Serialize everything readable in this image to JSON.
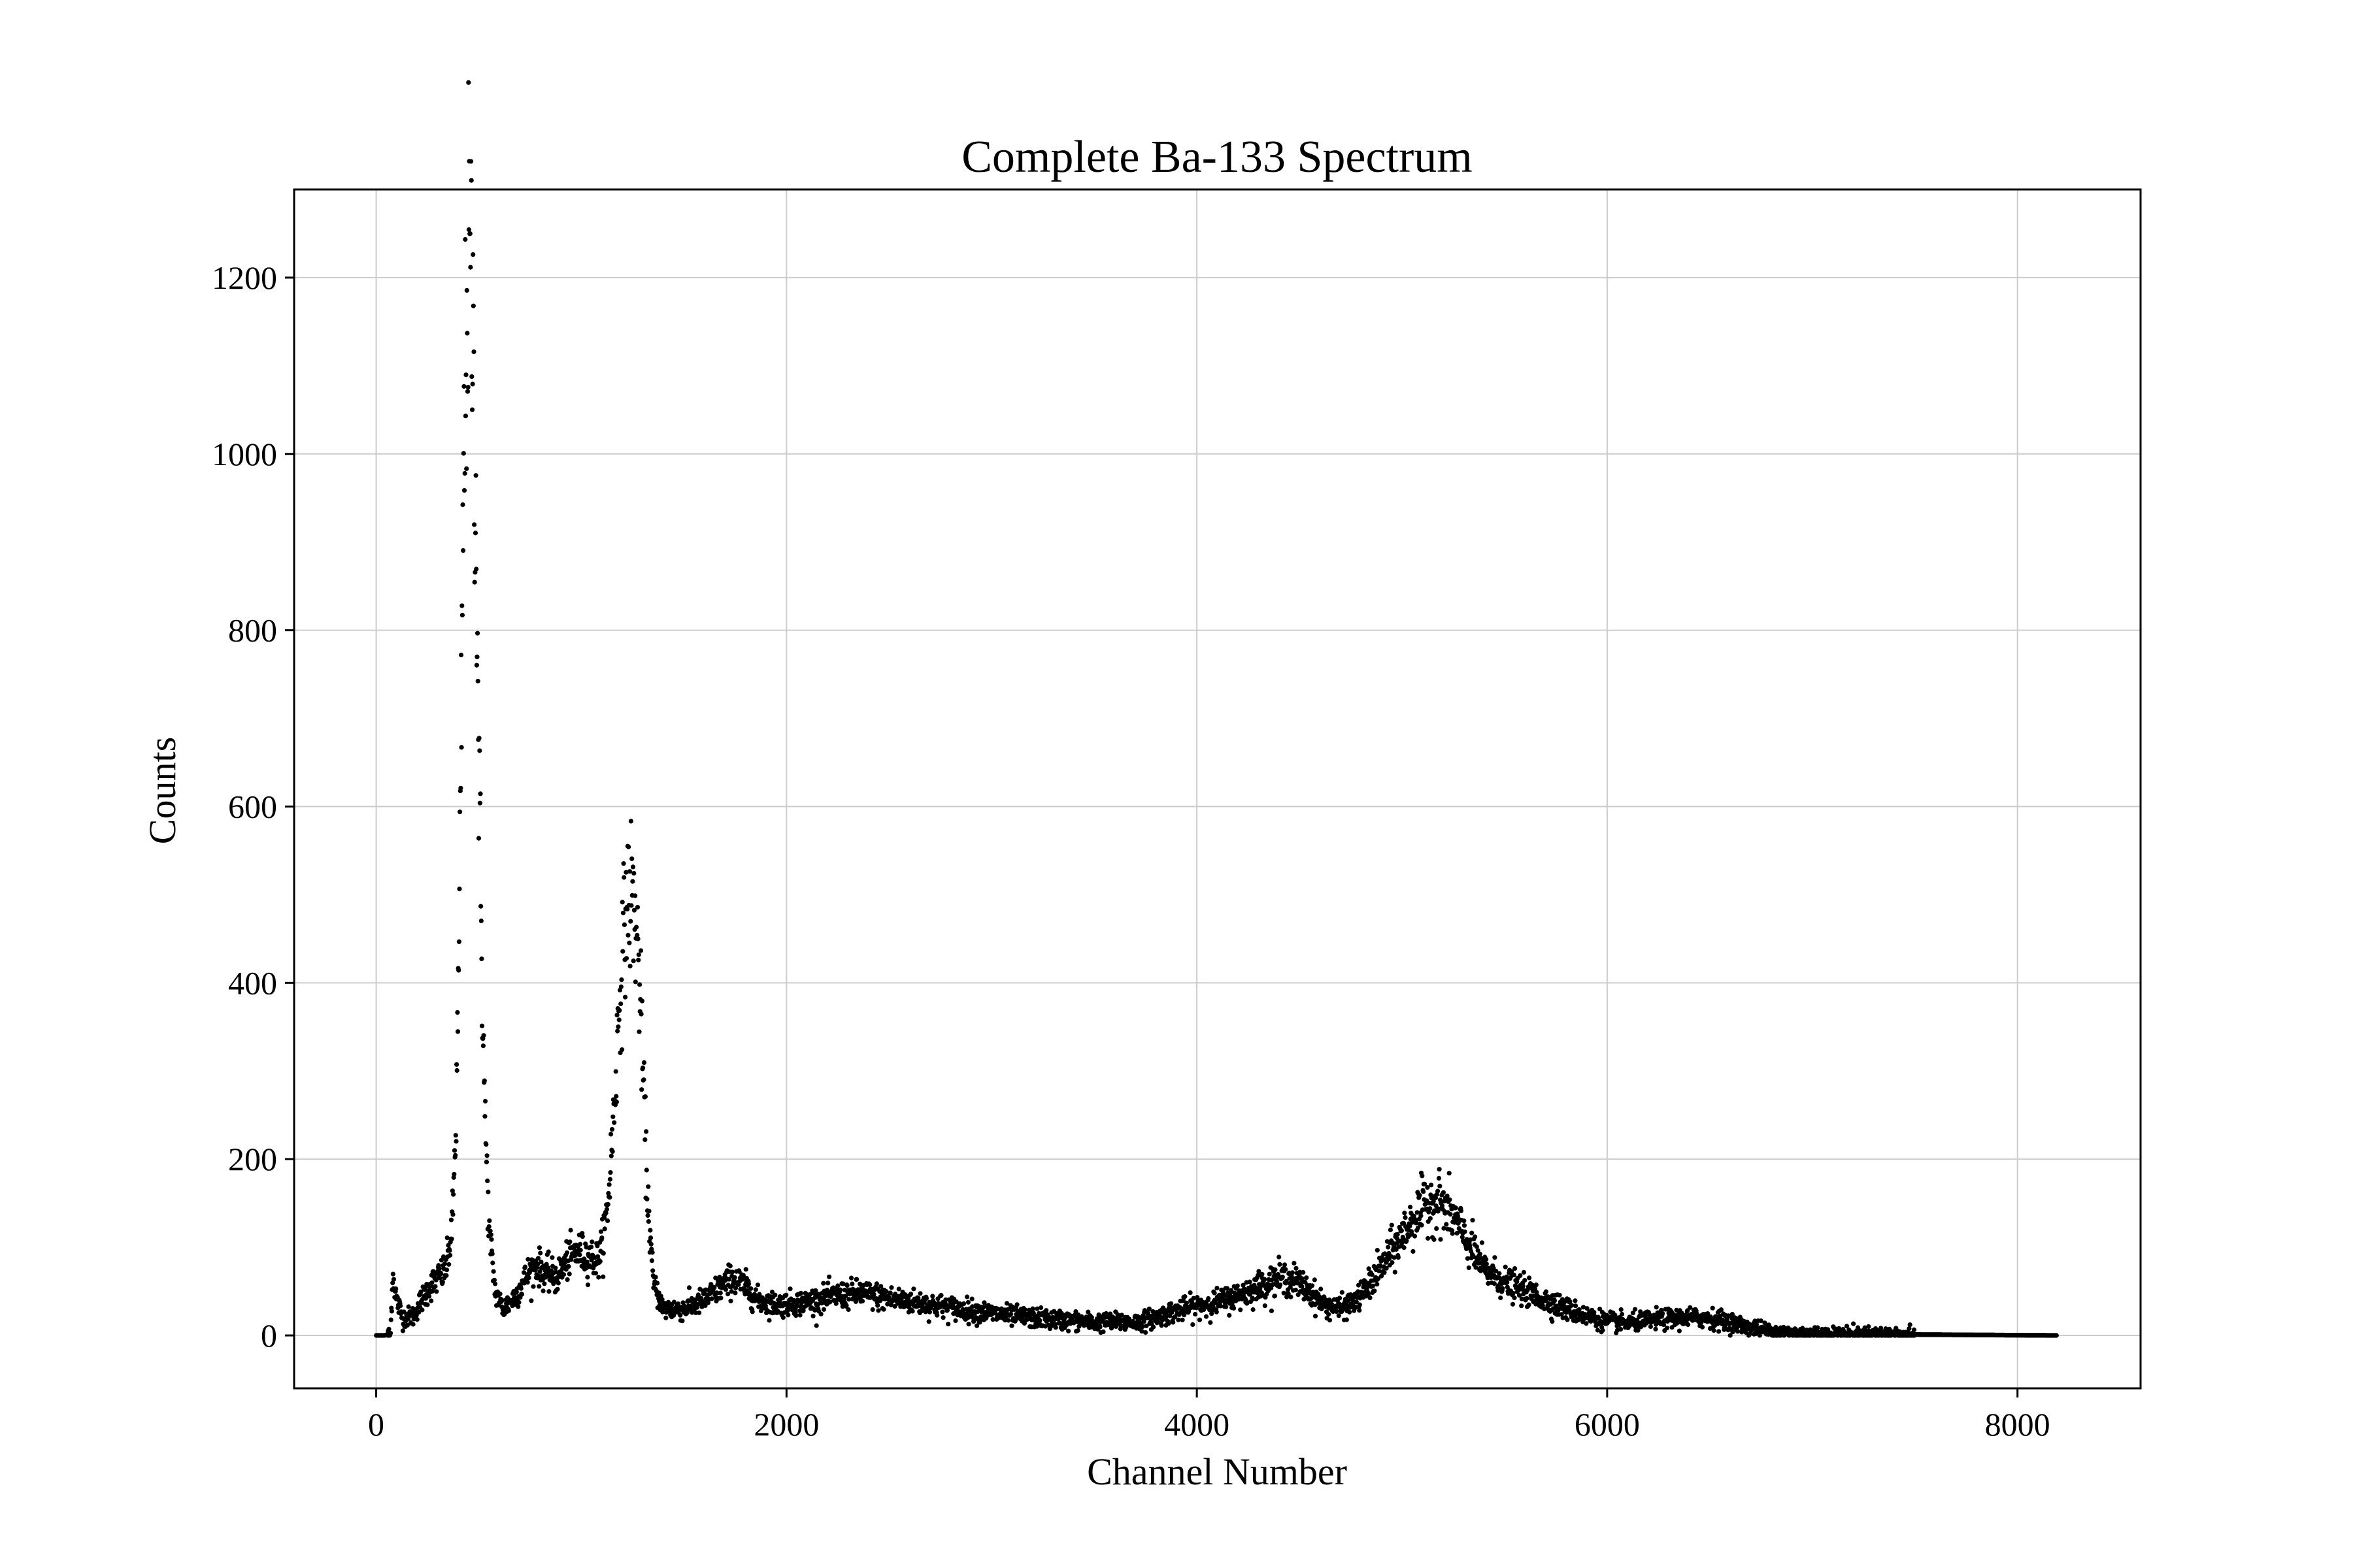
{
  "chart_data": {
    "type": "scatter",
    "title": "Complete Ba-133 Spectrum",
    "xlabel": "Channel Number",
    "ylabel": "Counts",
    "xlim": [
      -400,
      8600
    ],
    "ylim": [
      -60,
      1300
    ],
    "xticks": [
      0,
      2000,
      4000,
      6000,
      8000
    ],
    "yticks": [
      0,
      200,
      400,
      600,
      800,
      1000,
      1200
    ],
    "grid": true,
    "legend": "none",
    "marker_color": "#000000",
    "grid_color": "#cccccc",
    "channels": 8192,
    "series": [
      {
        "points": [
          [
            0,
            0
          ],
          [
            40,
            0
          ],
          [
            70,
            2
          ],
          [
            80,
            70
          ],
          [
            100,
            40
          ],
          [
            130,
            20
          ],
          [
            180,
            22
          ],
          [
            220,
            40
          ],
          [
            260,
            55
          ],
          [
            300,
            65
          ],
          [
            340,
            75
          ],
          [
            370,
            120
          ],
          [
            390,
            250
          ],
          [
            405,
            450
          ],
          [
            415,
            700
          ],
          [
            425,
            950
          ],
          [
            440,
            1150
          ],
          [
            455,
            1230
          ],
          [
            470,
            1150
          ],
          [
            485,
            950
          ],
          [
            500,
            650
          ],
          [
            515,
            420
          ],
          [
            530,
            250
          ],
          [
            550,
            120
          ],
          [
            580,
            50
          ],
          [
            620,
            30
          ],
          [
            680,
            45
          ],
          [
            740,
            70
          ],
          [
            780,
            80
          ],
          [
            830,
            70
          ],
          [
            880,
            65
          ],
          [
            930,
            85
          ],
          [
            980,
            95
          ],
          [
            1030,
            90
          ],
          [
            1080,
            85
          ],
          [
            1100,
            100
          ],
          [
            1130,
            150
          ],
          [
            1160,
            260
          ],
          [
            1190,
            400
          ],
          [
            1220,
            490
          ],
          [
            1245,
            500
          ],
          [
            1260,
            480
          ],
          [
            1280,
            420
          ],
          [
            1300,
            300
          ],
          [
            1320,
            170
          ],
          [
            1350,
            60
          ],
          [
            1400,
            30
          ],
          [
            1500,
            30
          ],
          [
            1600,
            40
          ],
          [
            1680,
            55
          ],
          [
            1740,
            65
          ],
          [
            1800,
            55
          ],
          [
            1860,
            40
          ],
          [
            1950,
            35
          ],
          [
            2100,
            38
          ],
          [
            2250,
            45
          ],
          [
            2350,
            48
          ],
          [
            2500,
            42
          ],
          [
            2700,
            35
          ],
          [
            2900,
            28
          ],
          [
            3100,
            22
          ],
          [
            3300,
            18
          ],
          [
            3500,
            15
          ],
          [
            3700,
            15
          ],
          [
            3800,
            20
          ],
          [
            3900,
            28
          ],
          [
            4000,
            33
          ],
          [
            4100,
            38
          ],
          [
            4200,
            45
          ],
          [
            4300,
            55
          ],
          [
            4400,
            65
          ],
          [
            4480,
            62
          ],
          [
            4550,
            50
          ],
          [
            4620,
            35
          ],
          [
            4700,
            30
          ],
          [
            4780,
            40
          ],
          [
            4850,
            60
          ],
          [
            4950,
            95
          ],
          [
            5050,
            130
          ],
          [
            5120,
            150
          ],
          [
            5180,
            152
          ],
          [
            5250,
            135
          ],
          [
            5320,
            105
          ],
          [
            5400,
            75
          ],
          [
            5500,
            60
          ],
          [
            5600,
            50
          ],
          [
            5700,
            40
          ],
          [
            5800,
            30
          ],
          [
            5900,
            22
          ],
          [
            6000,
            16
          ],
          [
            6100,
            14
          ],
          [
            6200,
            17
          ],
          [
            6300,
            19
          ],
          [
            6400,
            20
          ],
          [
            6500,
            20
          ],
          [
            6600,
            15
          ],
          [
            6700,
            9
          ],
          [
            6800,
            5
          ],
          [
            6900,
            3
          ],
          [
            7000,
            2
          ],
          [
            7500,
            1
          ],
          [
            8190,
            0
          ]
        ],
        "noise_sd_fraction": 0.08,
        "noise_floor": 4
      }
    ]
  }
}
